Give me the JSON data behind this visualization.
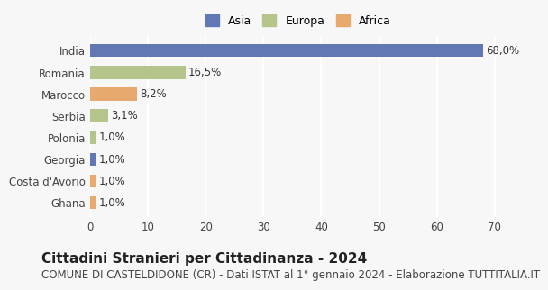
{
  "countries": [
    "India",
    "Romania",
    "Marocco",
    "Serbia",
    "Polonia",
    "Georgia",
    "Costa d'Avorio",
    "Ghana"
  ],
  "values": [
    68.0,
    16.5,
    8.2,
    3.1,
    1.0,
    1.0,
    1.0,
    1.0
  ],
  "continents": [
    "Asia",
    "Europa",
    "Africa",
    "Europa",
    "Europa",
    "Asia",
    "Africa",
    "Africa"
  ],
  "labels": [
    "68,0%",
    "16,5%",
    "8,2%",
    "3,1%",
    "1,0%",
    "1,0%",
    "1,0%",
    "1,0%"
  ],
  "colors": {
    "Asia": "#6278b5",
    "Europa": "#b5c48a",
    "Africa": "#e8a96e"
  },
  "legend_labels": [
    "Asia",
    "Europa",
    "Africa"
  ],
  "xlim": [
    0,
    72
  ],
  "xticks": [
    0,
    10,
    20,
    30,
    40,
    50,
    60,
    70
  ],
  "title": "Cittadini Stranieri per Cittadinanza - 2024",
  "subtitle": "COMUNE DI CASTELDIDONE (CR) - Dati ISTAT al 1° gennaio 2024 - Elaborazione TUTTITALIA.IT",
  "bg_color": "#f7f7f7",
  "grid_color": "#ffffff",
  "bar_height": 0.6,
  "title_fontsize": 11,
  "subtitle_fontsize": 8.5,
  "label_fontsize": 8.5,
  "tick_fontsize": 8.5,
  "legend_fontsize": 9
}
